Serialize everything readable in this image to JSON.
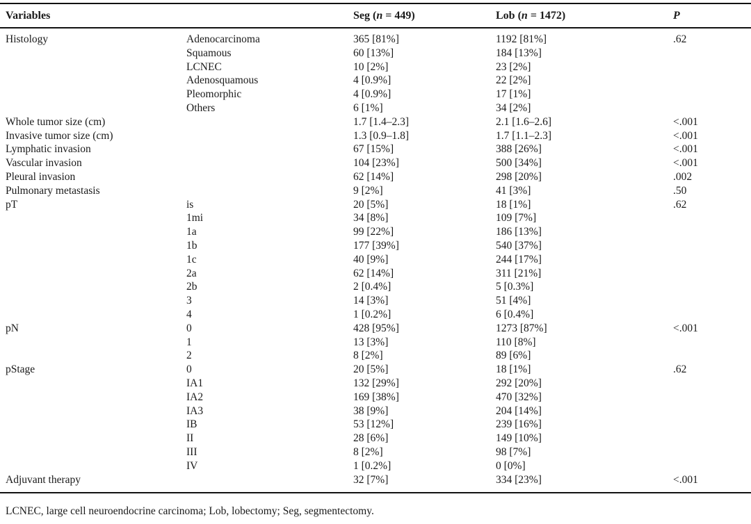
{
  "header": {
    "variables": "Variables",
    "seg": {
      "pre": "Seg (",
      "n": "n",
      "post": " = 449)"
    },
    "lob": {
      "pre": "Lob (",
      "n": "n",
      "post": " = 1472)"
    },
    "p": "P"
  },
  "rows": [
    {
      "variable": "Histology",
      "sub": "Adenocarcinoma",
      "seg": "365 [81%]",
      "lob": "1192 [81%]",
      "p": ".62"
    },
    {
      "variable": "",
      "sub": "Squamous",
      "seg": "60 [13%]",
      "lob": "184 [13%]",
      "p": ""
    },
    {
      "variable": "",
      "sub": "LCNEC",
      "seg": "10 [2%]",
      "lob": "23 [2%]",
      "p": ""
    },
    {
      "variable": "",
      "sub": "Adenosquamous",
      "seg": "4 [0.9%]",
      "lob": "22 [2%]",
      "p": ""
    },
    {
      "variable": "",
      "sub": "Pleomorphic",
      "seg": "4 [0.9%]",
      "lob": "17 [1%]",
      "p": ""
    },
    {
      "variable": "",
      "sub": "Others",
      "seg": "6 [1%]",
      "lob": "34 [2%]",
      "p": ""
    },
    {
      "variable": "Whole tumor size (cm)",
      "sub": "",
      "seg": "1.7 [1.4–2.3]",
      "lob": "2.1 [1.6–2.6]",
      "p": "<.001"
    },
    {
      "variable": "Invasive tumor size (cm)",
      "sub": "",
      "seg": "1.3 [0.9–1.8]",
      "lob": "1.7 [1.1–2.3]",
      "p": "<.001"
    },
    {
      "variable": "Lymphatic invasion",
      "sub": "",
      "seg": "67 [15%]",
      "lob": "388 [26%]",
      "p": "<.001"
    },
    {
      "variable": "Vascular invasion",
      "sub": "",
      "seg": "104 [23%]",
      "lob": "500 [34%]",
      "p": "<.001"
    },
    {
      "variable": "Pleural invasion",
      "sub": "",
      "seg": "62 [14%]",
      "lob": "298 [20%]",
      "p": ".002"
    },
    {
      "variable": "Pulmonary metastasis",
      "sub": "",
      "seg": "9 [2%]",
      "lob": "41 [3%]",
      "p": ".50"
    },
    {
      "variable": "pT",
      "sub": "is",
      "seg": "20 [5%]",
      "lob": "18 [1%]",
      "p": ".62"
    },
    {
      "variable": "",
      "sub": "1mi",
      "seg": "34 [8%]",
      "lob": "109 [7%]",
      "p": ""
    },
    {
      "variable": "",
      "sub": "1a",
      "seg": "99 [22%]",
      "lob": "186 [13%]",
      "p": ""
    },
    {
      "variable": "",
      "sub": "1b",
      "seg": "177 [39%]",
      "lob": "540 [37%]",
      "p": ""
    },
    {
      "variable": "",
      "sub": "1c",
      "seg": "40 [9%]",
      "lob": "244 [17%]",
      "p": ""
    },
    {
      "variable": "",
      "sub": "2a",
      "seg": "62 [14%]",
      "lob": "311 [21%]",
      "p": ""
    },
    {
      "variable": "",
      "sub": "2b",
      "seg": "2 [0.4%]",
      "lob": "5 [0.3%]",
      "p": ""
    },
    {
      "variable": "",
      "sub": "3",
      "seg": "14 [3%]",
      "lob": "51 [4%]",
      "p": ""
    },
    {
      "variable": "",
      "sub": "4",
      "seg": "1 [0.2%]",
      "lob": "6 [0.4%]",
      "p": ""
    },
    {
      "variable": "pN",
      "sub": "0",
      "seg": "428 [95%]",
      "lob": "1273 [87%]",
      "p": "<.001"
    },
    {
      "variable": "",
      "sub": "1",
      "seg": "13 [3%]",
      "lob": "110 [8%]",
      "p": ""
    },
    {
      "variable": "",
      "sub": "2",
      "seg": "8 [2%]",
      "lob": "89 [6%]",
      "p": ""
    },
    {
      "variable": "pStage",
      "sub": "0",
      "seg": "20 [5%]",
      "lob": "18 [1%]",
      "p": ".62"
    },
    {
      "variable": "",
      "sub": "IA1",
      "seg": "132 [29%]",
      "lob": "292 [20%]",
      "p": ""
    },
    {
      "variable": "",
      "sub": "IA2",
      "seg": "169 [38%]",
      "lob": "470 [32%]",
      "p": ""
    },
    {
      "variable": "",
      "sub": "IA3",
      "seg": "38 [9%]",
      "lob": "204 [14%]",
      "p": ""
    },
    {
      "variable": "",
      "sub": "IB",
      "seg": "53 [12%]",
      "lob": "239 [16%]",
      "p": ""
    },
    {
      "variable": "",
      "sub": "II",
      "seg": "28 [6%]",
      "lob": "149 [10%]",
      "p": ""
    },
    {
      "variable": "",
      "sub": "III",
      "seg": "8 [2%]",
      "lob": "98 [7%]",
      "p": ""
    },
    {
      "variable": "",
      "sub": "IV",
      "seg": "1 [0.2%]",
      "lob": "0 [0%]",
      "p": ""
    },
    {
      "variable": "Adjuvant therapy",
      "sub": "",
      "seg": "32 [7%]",
      "lob": "334 [23%]",
      "p": "<.001"
    }
  ],
  "footnote": "LCNEC, large cell neuroendocrine carcinoma; Lob, lobectomy; Seg, segmentectomy."
}
